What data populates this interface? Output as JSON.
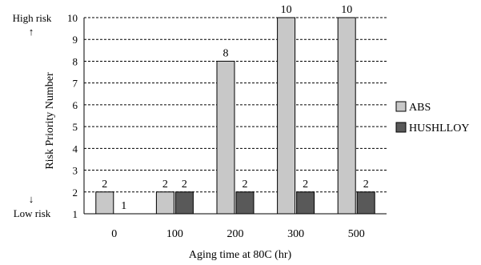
{
  "chart_data": {
    "type": "bar",
    "categories": [
      "0",
      "100",
      "200",
      "300",
      "500"
    ],
    "series": [
      {
        "name": "ABS",
        "values": [
          2,
          2,
          8,
          10,
          10
        ],
        "color": "#c8c8c8"
      },
      {
        "name": "HUSHLLOY",
        "values": [
          1,
          2,
          2,
          2,
          2
        ],
        "color": "#595959"
      }
    ],
    "data_labels": [
      [
        "2",
        "2",
        "8",
        "10",
        "10"
      ],
      [
        "1",
        "2",
        "2",
        "2",
        "2"
      ]
    ],
    "xlabel": "Aging time at 80C (hr)",
    "ylabel": "Risk Priority Number",
    "ylim": [
      1,
      10
    ],
    "yticks": [
      "1",
      "2",
      "3",
      "4",
      "5",
      "6",
      "7",
      "8",
      "9",
      "10"
    ],
    "grid": true,
    "legend": "right"
  },
  "annotations": {
    "high_label": "High risk",
    "high_arrow": "↑",
    "low_arrow": "↓",
    "low_label": "Low risk"
  }
}
